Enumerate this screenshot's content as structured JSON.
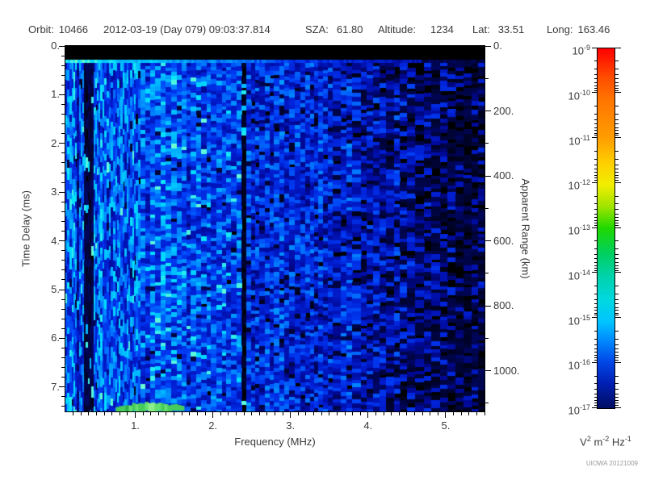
{
  "header": {
    "orbit_label": "Orbit:",
    "orbit_value": "10466",
    "datetime": "2012-03-19 (Day 079) 09:03:37.814",
    "sza_label": "SZA:",
    "sza_value": "61.80",
    "altitude_label": "Altitude:",
    "altitude_value": "1234",
    "lat_label": "Lat:",
    "lat_value": "33.51",
    "long_label": "Long:",
    "long_value": "163.46"
  },
  "credit": "UIOWA 20121009",
  "chart_data": {
    "type": "heatmap",
    "description": "Radar sounder ionogram spectrogram: received spectral density vs frequency and time delay, rainbow log color scale on black background",
    "xlabel": "Frequency (MHz)",
    "xlim": [
      0.1,
      5.5
    ],
    "x_tick_labels": [
      "1.",
      "2.",
      "3.",
      "4.",
      "5."
    ],
    "x_tick_values": [
      1,
      2,
      3,
      4,
      5
    ],
    "x_minor_step": 0.1,
    "ylabel": "Time Delay (ms)",
    "ylim": [
      0,
      7.5
    ],
    "y_tick_labels": [
      "0.",
      "1.",
      "2.",
      "3.",
      "4.",
      "5.",
      "6.",
      "7."
    ],
    "y_tick_values": [
      0,
      1,
      2,
      3,
      4,
      5,
      6,
      7
    ],
    "y_minor_step": 0.2,
    "y2label": "Apparent Range (km)",
    "y2lim": [
      0,
      1125
    ],
    "y2_tick_labels": [
      "0.",
      "200.",
      "400.",
      "600.",
      "800.",
      "1000."
    ],
    "y2_tick_values": [
      0,
      200,
      400,
      600,
      800,
      1000
    ],
    "y2_minor_step": 100,
    "grid": false,
    "colorbar": {
      "scale": "log",
      "min_label_exponent": -17,
      "max_label_exponent": -9,
      "tick_exponents": [
        -9,
        -10,
        -11,
        -12,
        -13,
        -14,
        -15,
        -16,
        -17
      ],
      "unit_parts": [
        {
          "base": "V",
          "exp": "2"
        },
        {
          "base": "m",
          "exp": "-2"
        },
        {
          "base": "Hz",
          "exp": "-1"
        }
      ],
      "gradient_stops": [
        "#ff0000 0%",
        "#ff4c00 8%",
        "#ff7300 14%",
        "#ff9e00 25%",
        "#ffd000 32%",
        "#f0ee00 38%",
        "#9fe400 44%",
        "#1fd800 50%",
        "#00d060 57%",
        "#00d2a8 63%",
        "#00d8e0 70%",
        "#00c4ff 76%",
        "#008cff 81%",
        "#0048e8 87%",
        "#0020b4 93%",
        "#000d62 100%"
      ]
    },
    "pattern": {
      "seed": 20121009,
      "top_black_band_ms": [
        0,
        0.28
      ],
      "calibration_line_ms": [
        0.28,
        0.35
      ],
      "striped_zone_max_mhz": 1.05,
      "dark_lanes_mhz": [
        [
          0.23,
          0.26,
          0.5
        ],
        [
          0.32,
          0.44,
          0.2
        ]
      ],
      "bright_line_mhz": 1.3,
      "bright_line_halfwidth_mhz": 0.025,
      "enhanced_zone_mhz": [
        1.2,
        1.65
      ],
      "dark_band_mhz": [
        2.32,
        2.41
      ],
      "surface_echo": {
        "mhz": [
          0.75,
          1.62
        ],
        "ms": [
          7.33,
          7.5
        ],
        "colors": [
          "#2fae4a",
          "#46cc5a",
          "#63e06e",
          "#8aef8a"
        ]
      },
      "brightness_profile": [
        [
          0.55,
          0.6
        ],
        [
          1.05,
          0.58
        ],
        [
          1.6,
          0.55
        ],
        [
          2.35,
          0.5
        ],
        [
          3.0,
          0.45
        ],
        [
          3.8,
          0.42
        ],
        [
          4.4,
          0.36
        ],
        [
          4.9,
          0.29
        ],
        [
          5.5,
          0.24
        ]
      ],
      "dropout_profile": [
        [
          2.35,
          0.02
        ],
        [
          3.6,
          0.07
        ],
        [
          4.3,
          0.14
        ],
        [
          4.8,
          0.32
        ],
        [
          5.2,
          0.47
        ],
        [
          5.5,
          0.58
        ]
      ],
      "palette_stops": [
        [
          0,
          "#000000"
        ],
        [
          0.1,
          "#00043c"
        ],
        [
          0.25,
          "#000896"
        ],
        [
          0.42,
          "#001ed2"
        ],
        [
          0.55,
          "#003cf5"
        ],
        [
          0.68,
          "#0078ff"
        ],
        [
          0.8,
          "#00b4ff"
        ],
        [
          0.9,
          "#00e1ff"
        ],
        [
          1,
          "#6effd2"
        ]
      ]
    }
  }
}
